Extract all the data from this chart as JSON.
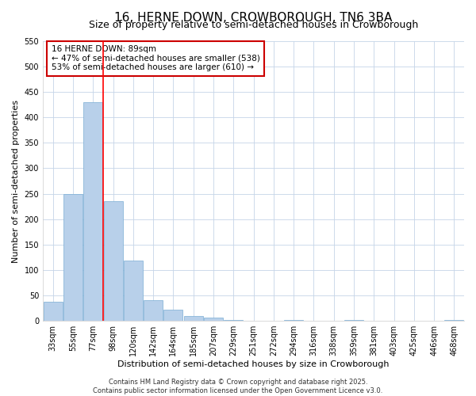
{
  "title": "16, HERNE DOWN, CROWBOROUGH, TN6 3BA",
  "subtitle": "Size of property relative to semi-detached houses in Crowborough",
  "xlabel": "Distribution of semi-detached houses by size in Crowborough",
  "ylabel": "Number of semi-detached properties",
  "categories": [
    "33sqm",
    "55sqm",
    "77sqm",
    "98sqm",
    "120sqm",
    "142sqm",
    "164sqm",
    "185sqm",
    "207sqm",
    "229sqm",
    "251sqm",
    "272sqm",
    "294sqm",
    "316sqm",
    "338sqm",
    "359sqm",
    "381sqm",
    "403sqm",
    "425sqm",
    "446sqm",
    "468sqm"
  ],
  "values": [
    38,
    250,
    430,
    235,
    118,
    40,
    22,
    9,
    6,
    2,
    0,
    0,
    1,
    0,
    0,
    2,
    0,
    0,
    0,
    0,
    2
  ],
  "bar_color": "#b8d0ea",
  "bar_edge_color": "#7aadd4",
  "grid_color": "#c5d5e8",
  "background_color": "#ffffff",
  "annotation_text": "16 HERNE DOWN: 89sqm\n← 47% of semi-detached houses are smaller (538)\n53% of semi-detached houses are larger (610) →",
  "annotation_box_color": "#ffffff",
  "annotation_box_edge": "#cc0000",
  "marker_bar_index": 3,
  "ylim": [
    0,
    550
  ],
  "yticks": [
    0,
    50,
    100,
    150,
    200,
    250,
    300,
    350,
    400,
    450,
    500,
    550
  ],
  "footer_text": "Contains HM Land Registry data © Crown copyright and database right 2025.\nContains public sector information licensed under the Open Government Licence v3.0.",
  "title_fontsize": 11,
  "subtitle_fontsize": 9,
  "axis_label_fontsize": 8,
  "tick_fontsize": 7,
  "annotation_fontsize": 7.5,
  "footer_fontsize": 6
}
